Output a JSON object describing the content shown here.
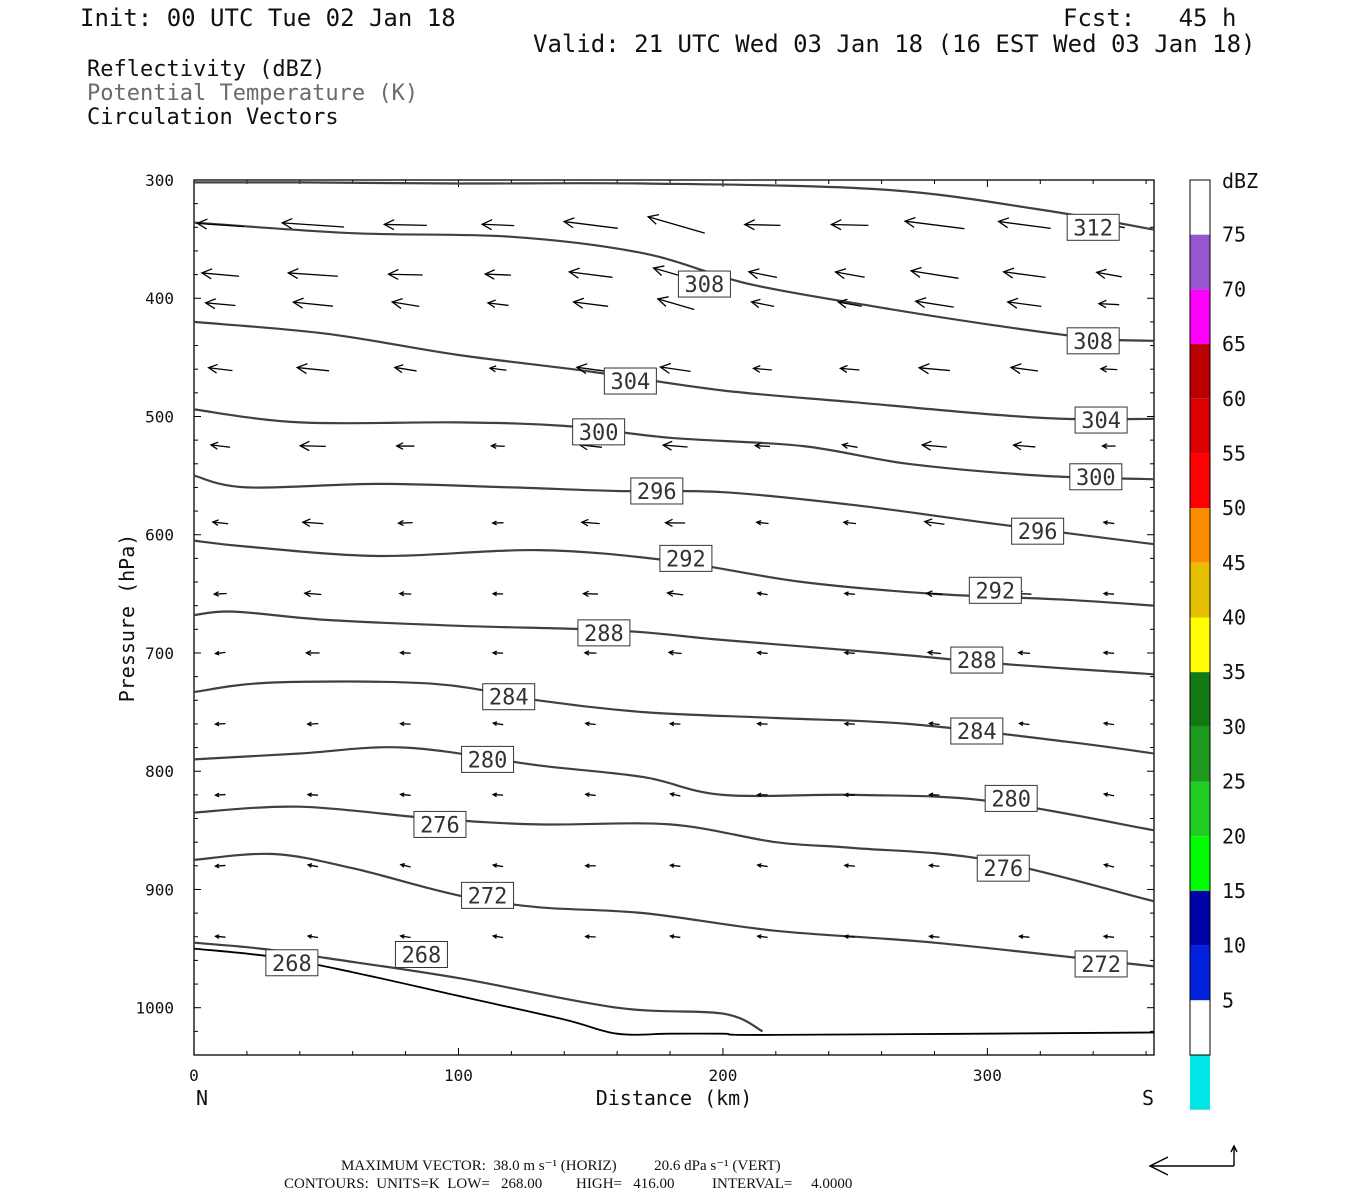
{
  "header": {
    "init": "Init: 00 UTC Tue 02 Jan 18",
    "fcst": "Fcst:   45 h",
    "valid": "Valid: 21 UTC Wed 03 Jan 18 (16 EST Wed 03 Jan 18)"
  },
  "legend_text": {
    "reflectivity": "Reflectivity (dBZ)",
    "theta": "Potential Temperature (K)",
    "vectors": "Circulation Vectors"
  },
  "colors": {
    "contour": "#404040",
    "vector": "#000000",
    "frame": "#000000"
  },
  "chart_data": {
    "type": "line",
    "title": "",
    "xlabel": "Distance (km)",
    "ylabel": "Pressure (hPa)",
    "xlim": [
      0,
      363
    ],
    "ylim": [
      1040,
      300
    ],
    "y_reversed": true,
    "grid": false,
    "x_ticks": [
      0,
      100,
      200,
      300
    ],
    "y_ticks": [
      300,
      400,
      500,
      600,
      700,
      800,
      900,
      1000
    ],
    "x_end_labels": {
      "left": "N",
      "right": "S"
    },
    "contour_units": "K",
    "contour_interval": 4,
    "isentropes": [
      {
        "theta": 312,
        "x": [
          0,
          40,
          100,
          170,
          260,
          320,
          363
        ],
        "p": [
          302,
          302,
          303,
          303,
          308,
          325,
          342
        ]
      },
      {
        "theta": 308,
        "x": [
          0,
          60,
          120,
          170,
          210,
          260,
          300,
          340,
          363
        ],
        "p": [
          336,
          345,
          348,
          362,
          388,
          408,
          422,
          434,
          436
        ]
      },
      {
        "theta": 304,
        "x": [
          0,
          50,
          100,
          150,
          200,
          250,
          300,
          330,
          363
        ],
        "p": [
          420,
          430,
          448,
          462,
          478,
          488,
          498,
          502,
          502
        ]
      },
      {
        "theta": 300,
        "x": [
          0,
          40,
          100,
          140,
          180,
          230,
          270,
          320,
          363
        ],
        "p": [
          494,
          505,
          505,
          508,
          518,
          525,
          540,
          550,
          553
        ]
      },
      {
        "theta": 296,
        "x": [
          0,
          20,
          70,
          120,
          160,
          200,
          250,
          300,
          363
        ],
        "p": [
          550,
          560,
          557,
          560,
          563,
          564,
          575,
          590,
          608
        ]
      },
      {
        "theta": 292,
        "x": [
          0,
          20,
          70,
          130,
          180,
          230,
          280,
          330,
          363
        ],
        "p": [
          605,
          610,
          618,
          613,
          622,
          640,
          650,
          655,
          660
        ]
      },
      {
        "theta": 288,
        "x": [
          0,
          15,
          50,
          100,
          160,
          200,
          260,
          310,
          363
        ],
        "p": [
          668,
          665,
          672,
          677,
          681,
          689,
          700,
          710,
          718
        ]
      },
      {
        "theta": 284,
        "x": [
          0,
          30,
          90,
          130,
          170,
          220,
          270,
          330,
          363
        ],
        "p": [
          733,
          725,
          726,
          740,
          750,
          755,
          760,
          775,
          785
        ]
      },
      {
        "theta": 280,
        "x": [
          0,
          40,
          80,
          130,
          170,
          200,
          250,
          300,
          363
        ],
        "p": [
          790,
          785,
          780,
          795,
          805,
          820,
          820,
          825,
          850
        ]
      },
      {
        "theta": 276,
        "x": [
          0,
          40,
          90,
          130,
          180,
          220,
          250,
          300,
          363
        ],
        "p": [
          835,
          830,
          840,
          845,
          845,
          860,
          865,
          875,
          910
        ]
      },
      {
        "theta": 272,
        "x": [
          0,
          30,
          60,
          100,
          130,
          170,
          220,
          280,
          363
        ],
        "p": [
          875,
          870,
          882,
          905,
          915,
          920,
          935,
          945,
          965
        ]
      },
      {
        "theta": 268,
        "x": [
          0,
          25,
          50,
          100,
          160,
          200,
          215
        ],
        "p": [
          945,
          950,
          958,
          975,
          1000,
          1005,
          1020
        ]
      }
    ],
    "inline_contour_labels": [
      {
        "text": "312",
        "x": 340,
        "p": 340
      },
      {
        "text": "308",
        "x": 193,
        "p": 388
      },
      {
        "text": "308",
        "x": 340,
        "p": 436
      },
      {
        "text": "304",
        "x": 165,
        "p": 470
      },
      {
        "text": "304",
        "x": 343,
        "p": 503
      },
      {
        "text": "300",
        "x": 153,
        "p": 513
      },
      {
        "text": "300",
        "x": 341,
        "p": 551
      },
      {
        "text": "296",
        "x": 175,
        "p": 563
      },
      {
        "text": "296",
        "x": 319,
        "p": 597
      },
      {
        "text": "292",
        "x": 186,
        "p": 620
      },
      {
        "text": "292",
        "x": 303,
        "p": 647
      },
      {
        "text": "288",
        "x": 155,
        "p": 683
      },
      {
        "text": "288",
        "x": 296,
        "p": 706
      },
      {
        "text": "284",
        "x": 119,
        "p": 737
      },
      {
        "text": "284",
        "x": 296,
        "p": 766
      },
      {
        "text": "280",
        "x": 111,
        "p": 790
      },
      {
        "text": "280",
        "x": 309,
        "p": 823
      },
      {
        "text": "276",
        "x": 93,
        "p": 845
      },
      {
        "text": "276",
        "x": 306,
        "p": 882
      },
      {
        "text": "272",
        "x": 111,
        "p": 905
      },
      {
        "text": "272",
        "x": 343,
        "p": 963
      },
      {
        "text": "268",
        "x": 37,
        "p": 962
      },
      {
        "text": "268",
        "x": 86,
        "p": 955
      }
    ],
    "terrain": {
      "x": [
        0,
        30,
        60,
        100,
        140,
        160,
        180,
        200,
        220,
        363
      ],
      "p": [
        950,
        957,
        970,
        990,
        1010,
        1022,
        1022,
        1022,
        1023,
        1021
      ]
    },
    "vectors": {
      "rows_p": [
        338,
        380,
        405,
        460,
        525,
        590,
        650,
        700,
        760,
        820,
        880,
        940
      ],
      "cols_x": [
        10,
        45,
        80,
        115,
        150,
        182,
        215,
        248,
        280,
        314,
        346
      ],
      "scale_reference": {
        "u_ms": 38.0,
        "omega_dPa_s": 20.6
      }
    },
    "colorbar": {
      "units": "dBZ",
      "labels": [
        "75",
        "70",
        "65",
        "60",
        "55",
        "50",
        "45",
        "40",
        "35",
        "30",
        "25",
        "20",
        "15",
        "10",
        "5"
      ],
      "colors": [
        "#ffffff",
        "#00e5e5",
        "#0099e6",
        "#0022dd",
        "#0000aa",
        "#00ff00",
        "#22cc22",
        "#1d9a1d",
        "#137a13",
        "#ffff00",
        "#e6c000",
        "#ff8c00",
        "#ff0000",
        "#dd0000",
        "#bb0000",
        "#ff00ff",
        "#9955cc",
        "#ffffff"
      ]
    }
  },
  "footer": {
    "line1": "MAXIMUM VECTOR:  38.0 m s⁻¹ (HORIZ)          20.6 dPa s⁻¹ (VERT)",
    "line2": "CONTOURS:  UNITS=K  LOW=   268.00         HIGH=   416.00          INTERVAL=     4.0000"
  }
}
